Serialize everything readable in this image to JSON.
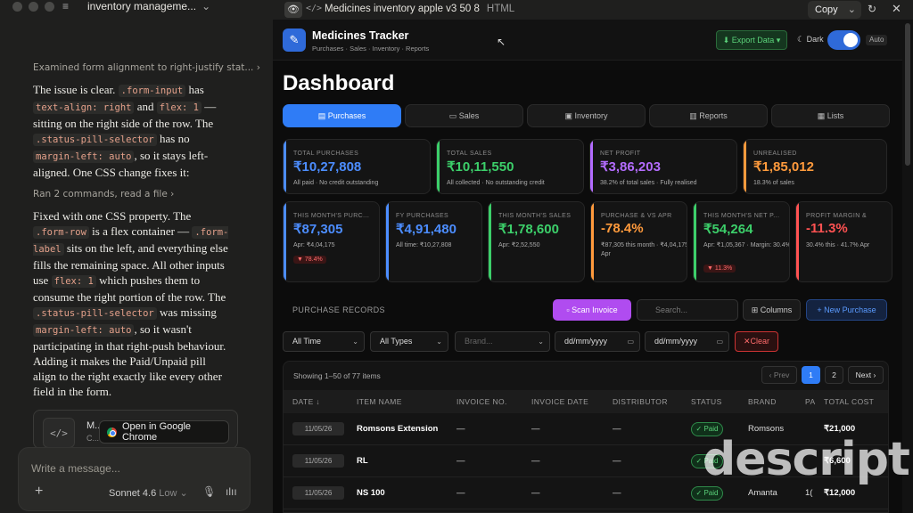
{
  "sidebar": {
    "chat_title": "inventory manageme...",
    "examined": "Examined form alignment to right-justify stat...",
    "ran": "Ran 2 commands, read a file",
    "artifact_title": "M...",
    "artifact_sub": "C...",
    "chrome_button": "Open in Google Chrome",
    "composer_placeholder": "Write a message...",
    "model": "Sonnet 4.6",
    "effort": "Low"
  },
  "artifact_bar": {
    "title": "Medicines inventory apple v3 50 8",
    "format": "HTML",
    "copy": "Copy"
  },
  "app": {
    "brand": "Medicines Tracker",
    "brand_sub": "Purchases · Sales · Inventory · Reports",
    "export": "⬇ Export Data ▾",
    "dark": "Dark",
    "auto": "Auto",
    "dashboard": "Dashboard",
    "tabs": [
      "Purchases",
      "Sales",
      "Inventory",
      "Reports",
      "Lists"
    ],
    "kpi_top": [
      {
        "label": "TOTAL PURCHASES",
        "value": "₹10,27,808",
        "sub": "All paid · No credit outstanding",
        "color": "#4c8dff"
      },
      {
        "label": "TOTAL SALES",
        "value": "₹10,11,550",
        "sub": "All collected · No outstanding credit",
        "color": "#3ccf6a"
      },
      {
        "label": "NET PROFIT",
        "value": "₹3,86,203",
        "sub": "38.2% of total sales · Fully realised",
        "color": "#b36cff"
      },
      {
        "label": "UNREALISED",
        "value": "₹1,85,012",
        "sub": "18.3% of sales",
        "color": "#ff9a3c"
      }
    ],
    "kpi_bottom": [
      {
        "label": "THIS MONTH'S PURC...",
        "value": "₹87,305",
        "sub": "Apr: ₹4,04,175",
        "pill": "▼ 78.4%",
        "color": "#4c8dff"
      },
      {
        "label": "FY PURCHASES",
        "value": "₹4,91,480",
        "sub": "All time: ₹10,27,808",
        "pill": "",
        "color": "#4c8dff"
      },
      {
        "label": "THIS MONTH'S SALES",
        "value": "₹1,78,600",
        "sub": "Apr: ₹2,52,550",
        "pill": "",
        "color": "#3ccf6a"
      },
      {
        "label": "PURCHASE & VS APR",
        "value": "-78.4%",
        "sub": "₹87,305 this month · ₹4,04,175 Apr",
        "pill": "",
        "color": "#ff9a3c"
      },
      {
        "label": "THIS MONTH'S NET P...",
        "value": "₹54,264",
        "sub": "Apr: ₹1,05,367 · Margin: 30.4%",
        "pill": "▼ 11.3%",
        "color": "#3ccf6a"
      },
      {
        "label": "PROFIT MARGIN &",
        "value": "-11.3%",
        "sub": "30.4% this · 41.7% Apr",
        "pill": "",
        "color": "#ff5252"
      }
    ],
    "records_title": "PURCHASE RECORDS",
    "scan": "▫ Scan Invoice",
    "search_placeholder": "Search...",
    "columns": "⊞ Columns",
    "new_purchase": "+ New Purchase",
    "filters": {
      "time": "All Time",
      "types": "All Types",
      "brand": "Brand...",
      "date_from": "dd/mm/yyyy",
      "date_to": "dd/mm/yyyy",
      "clear": "✕Clear"
    },
    "showing": "Showing 1–50 of 77 items",
    "pager": {
      "prev": "‹ Prev",
      "p1": "1",
      "p2": "2",
      "next": "Next ›"
    },
    "headers": [
      "DATE ↓",
      "ITEM NAME",
      "INVOICE NO.",
      "INVOICE DATE",
      "DISTRIBUTOR",
      "STATUS",
      "BRAND",
      "PA",
      "TOTAL COST"
    ],
    "rows": [
      {
        "date": "11/05/26",
        "item": "Romsons Extension",
        "inv": "—",
        "inv_date": "—",
        "dist": "—",
        "status": "✓ Paid",
        "brand": "Romsons",
        "pa": "",
        "cost": "₹21,000"
      },
      {
        "date": "11/05/26",
        "item": "RL",
        "inv": "—",
        "inv_date": "—",
        "dist": "—",
        "status": "✓ Paid",
        "brand": "",
        "pa": "",
        "cost": "₹6,600"
      },
      {
        "date": "11/05/26",
        "item": "NS 100",
        "inv": "—",
        "inv_date": "—",
        "dist": "—",
        "status": "✓ Paid",
        "brand": "Amanta",
        "pa": "1(",
        "cost": "₹12,000"
      }
    ]
  },
  "watermark": "descript"
}
